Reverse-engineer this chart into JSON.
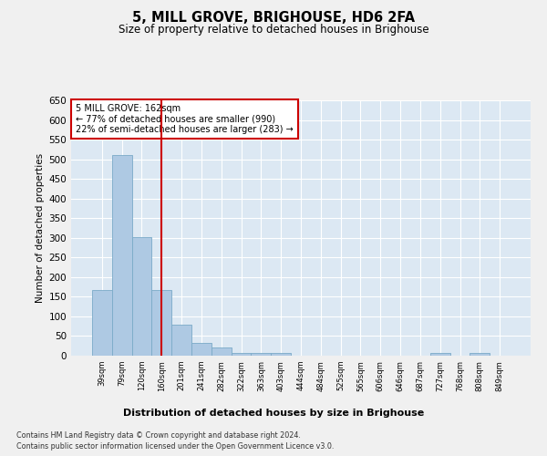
{
  "title": "5, MILL GROVE, BRIGHOUSE, HD6 2FA",
  "subtitle": "Size of property relative to detached houses in Brighouse",
  "xlabel": "Distribution of detached houses by size in Brighouse",
  "ylabel": "Number of detached properties",
  "categories": [
    "39sqm",
    "79sqm",
    "120sqm",
    "160sqm",
    "201sqm",
    "241sqm",
    "282sqm",
    "322sqm",
    "363sqm",
    "403sqm",
    "444sqm",
    "484sqm",
    "525sqm",
    "565sqm",
    "606sqm",
    "646sqm",
    "687sqm",
    "727sqm",
    "768sqm",
    "808sqm",
    "849sqm"
  ],
  "values": [
    168,
    510,
    302,
    168,
    78,
    32,
    20,
    7,
    7,
    7,
    0,
    0,
    0,
    0,
    0,
    0,
    0,
    7,
    0,
    7,
    0
  ],
  "bar_color": "#aec9e3",
  "bar_edge_color": "#7aaac8",
  "plot_bg_color": "#dce8f3",
  "fig_bg_color": "#f0f0f0",
  "grid_color": "#ffffff",
  "red_line_x": 3.0,
  "annotation_text": "5 MILL GROVE: 162sqm\n← 77% of detached houses are smaller (990)\n22% of semi-detached houses are larger (283) →",
  "annotation_box_color": "#ffffff",
  "annotation_box_edge": "#cc0000",
  "ylim": [
    0,
    650
  ],
  "footnote1": "Contains HM Land Registry data © Crown copyright and database right 2024.",
  "footnote2": "Contains public sector information licensed under the Open Government Licence v3.0."
}
